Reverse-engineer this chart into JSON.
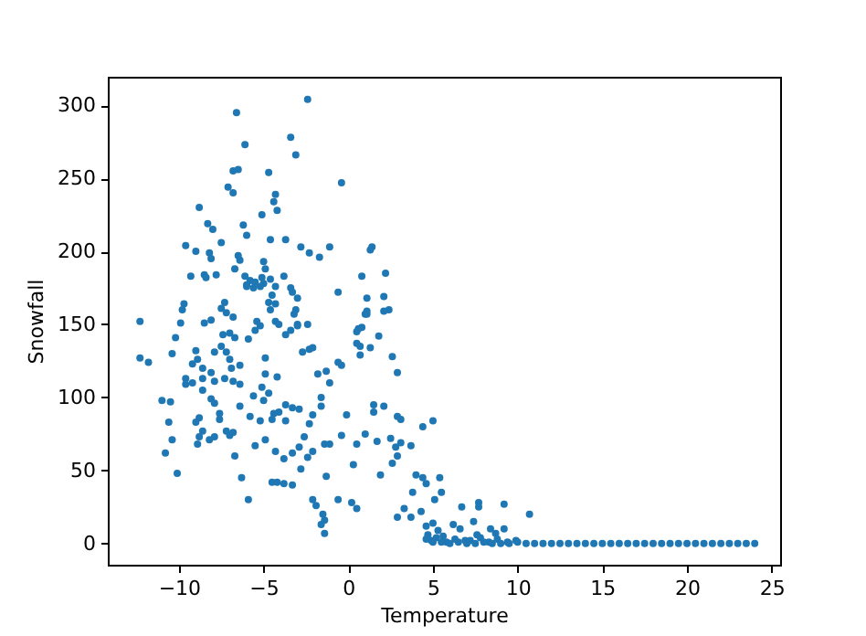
{
  "chart_data": {
    "type": "scatter",
    "xlabel": "Temperature",
    "ylabel": "Snowfall",
    "xlim": [
      -14.2,
      25.5
    ],
    "ylim": [
      -14.5,
      319.5
    ],
    "xticks": [
      -10,
      -5,
      0,
      5,
      10,
      15,
      20,
      25
    ],
    "yticks": [
      0,
      50,
      100,
      150,
      200,
      250,
      300
    ],
    "marker": "circle",
    "grid": false,
    "series": [
      {
        "color": "#1f77b4",
        "x": [
          -2.4,
          -6.6,
          -3.4,
          -6.1,
          -3.1,
          -6.8,
          -6.5,
          -4.7,
          -0.4,
          -7.1,
          -6.8,
          -4.3,
          -8.8,
          -4.4,
          -4.2,
          -5.1,
          -8.3,
          -8.0,
          -6.2,
          -6.0,
          -7.5,
          -4.6,
          -3.7,
          -9.6,
          -9.0,
          -8.2,
          -8.1,
          -6.5,
          -6.4,
          -2.8,
          -2.3,
          -1.7,
          -1.1,
          1.3,
          1.4,
          -5.0,
          -4.9,
          -5.1,
          -5.0,
          -5.2,
          -6.7,
          -9.3,
          -8.5,
          -8.4,
          -7.8,
          -6.1,
          -5.8,
          -6.0,
          -5.6,
          -5.5,
          -6.0,
          -4.6,
          -4.3,
          -4.5,
          -4.7,
          -4.6,
          -4.3,
          -3.8,
          -3.4,
          -3.0,
          -3.1,
          -3.2,
          -3.3,
          -7.3,
          -7.5,
          -7.2,
          -6.8,
          -9.7,
          -9.8,
          -0.6,
          0.8,
          2.2,
          2.1,
          2.4,
          1.1,
          1.1,
          -12.3,
          -9.9,
          -8.5,
          -8.1,
          -2.4,
          -3.0,
          -5.4,
          -4.3,
          0.8,
          -12.3,
          -11.8,
          -10.2,
          -10.4,
          -11.0,
          -10.5,
          -10.6,
          -10.4,
          -10.8,
          -10.1,
          -9.6,
          -9.6,
          -9.0,
          -8.9,
          -9.2,
          -9.2,
          -8.6,
          -8.6,
          -8.1,
          -7.9,
          -8.6,
          -8.1,
          -7.9,
          -8.8,
          -8.6,
          -8.2,
          -7.9,
          -7.6,
          -9.0,
          -8.8,
          -8.9,
          -7.9,
          -7.5,
          -7.2,
          -7.4,
          -7.0,
          -6.7,
          -7.0,
          -6.9,
          -7.3,
          -6.8,
          -6.4,
          -6.4,
          -7.6,
          -7.2,
          -7.0,
          -6.8,
          -6.4,
          -5.8,
          -5.6,
          -5.1,
          -5.0,
          -4.7,
          -6.7,
          -6.3,
          -5.9,
          -5.5,
          -4.9,
          -5.2,
          -5.9,
          -5.5,
          -5.2,
          -4.9,
          -4.9,
          -4.1,
          -3.7,
          -3.4,
          -3.0,
          -2.7,
          -2.3,
          -2.1,
          -4.2,
          -4.4,
          -4.5,
          -4.1,
          -3.7,
          -3.3,
          -2.9,
          -3.7,
          -4.3,
          -3.8,
          -3.3,
          -2.9,
          -2.6,
          -2.3,
          -2.1,
          -4.5,
          -4.2,
          -3.8,
          -3.3,
          -2.8,
          -2.4,
          -2.1,
          -2.1,
          -1.9,
          -1.5,
          -1.4,
          -1.8,
          -1.3,
          -1.1,
          -1.6,
          -1.6,
          -1.4,
          -1.1,
          -1.3,
          -0.4,
          -0.1,
          -0.6,
          0.2,
          0.5,
          0.3,
          0.5,
          1.0,
          1.5,
          -0.4,
          -0.6,
          0.5,
          0.7,
          1.0,
          -1.6,
          -1.4,
          0.6,
          0.5,
          0.7,
          1.3,
          1.8,
          1.1,
          2.1,
          2.6,
          2.9,
          2.1,
          1.5,
          1.7,
          2.5,
          2.8,
          3.1,
          3.7,
          2.9,
          2.6,
          1.9,
          4.4,
          5.0,
          2.9,
          3.1,
          4.0,
          4.4,
          4.6,
          5.4,
          5.5,
          5.1,
          3.8,
          3.3,
          2.9,
          3.7,
          4.3,
          4.6,
          5.0,
          4.7,
          5.3,
          5.6,
          6.2,
          6.7,
          7.4,
          7.7,
          7.7,
          9.2,
          10.7,
          6.6,
          7.6,
          8.4,
          8.7,
          9.2,
          4.6,
          4.9,
          5.2,
          5.8,
          6.3,
          6.9,
          7.2,
          7.8,
          8.3,
          8.8,
          9.4,
          9.9,
          5.0,
          5.5,
          6.0,
          6.5,
          7.0,
          7.5,
          8.0,
          8.5,
          9.0,
          9.5,
          10.0,
          10.5,
          11.0,
          11.5,
          12.0,
          12.5,
          13.0,
          13.5,
          14.0,
          14.5,
          15.0,
          15.5,
          16.0,
          16.5,
          17.0,
          17.5,
          18.0,
          18.5,
          19.0,
          19.5,
          20.0,
          20.5,
          21.0,
          21.5,
          22.0,
          22.5,
          23.0,
          23.5,
          24.0
        ],
        "values": [
          304,
          295,
          278,
          273,
          266,
          255,
          256,
          254,
          247,
          244,
          240,
          239,
          230,
          234,
          228,
          225,
          219,
          215,
          218,
          211,
          206,
          208,
          208,
          204,
          200,
          199,
          195,
          197,
          194,
          203,
          199,
          196,
          203,
          201,
          203,
          193,
          188,
          182,
          178,
          176,
          188,
          183,
          184,
          182,
          184,
          183,
          180,
          177,
          175,
          179,
          176,
          181,
          176,
          170,
          165,
          160,
          164,
          183,
          175,
          168,
          160,
          157,
          172,
          165,
          161,
          158,
          155,
          164,
          160,
          172,
          183,
          185,
          169,
          160,
          168,
          159,
          152,
          151,
          151,
          153,
          150,
          150,
          152,
          152,
          148,
          127,
          124,
          141,
          130,
          98,
          97,
          83,
          71,
          62,
          48,
          113,
          109,
          132,
          126,
          123,
          110,
          120,
          113,
          117,
          111,
          105,
          99,
          96,
          86,
          77,
          71,
          73,
          85,
          83,
          73,
          68,
          131,
          135,
          131,
          143,
          144,
          141,
          126,
          120,
          113,
          111,
          122,
          109,
          89,
          77,
          74,
          76,
          94,
          87,
          101,
          107,
          98,
          103,
          60,
          45,
          30,
          67,
          71,
          84,
          140,
          146,
          149,
          127,
          116,
          150,
          143,
          146,
          149,
          131,
          133,
          134,
          114,
          89,
          85,
          90,
          95,
          93,
          92,
          84,
          63,
          58,
          62,
          66,
          73,
          82,
          88,
          42,
          42,
          41,
          40,
          51,
          59,
          63,
          30,
          26,
          20,
          16,
          116,
          118,
          110,
          100,
          94,
          68,
          68,
          46,
          74,
          88,
          30,
          28,
          24,
          54,
          68,
          75,
          95,
          122,
          124,
          145,
          135,
          157,
          13,
          7,
          147,
          137,
          129,
          134,
          142,
          157,
          159,
          128,
          117,
          94,
          90,
          70,
          72,
          66,
          69,
          67,
          60,
          55,
          47,
          80,
          84,
          87,
          85,
          47,
          45,
          41,
          45,
          35,
          30,
          35,
          24,
          18,
          18,
          22,
          12,
          14,
          6,
          9,
          5,
          13,
          25,
          15,
          28,
          25,
          27,
          20,
          10,
          6,
          10,
          7,
          10,
          3,
          2,
          4,
          1,
          3,
          2,
          2,
          4,
          1,
          3,
          1,
          2,
          1,
          1,
          0,
          1,
          0,
          0,
          1,
          0,
          0,
          0,
          1,
          0,
          0,
          0,
          0,
          0,
          0,
          0,
          0,
          0,
          0,
          0,
          0,
          0,
          0,
          0,
          0,
          0,
          0,
          0,
          0,
          0,
          0,
          0,
          0,
          0,
          0,
          0,
          0
        ]
      }
    ]
  }
}
